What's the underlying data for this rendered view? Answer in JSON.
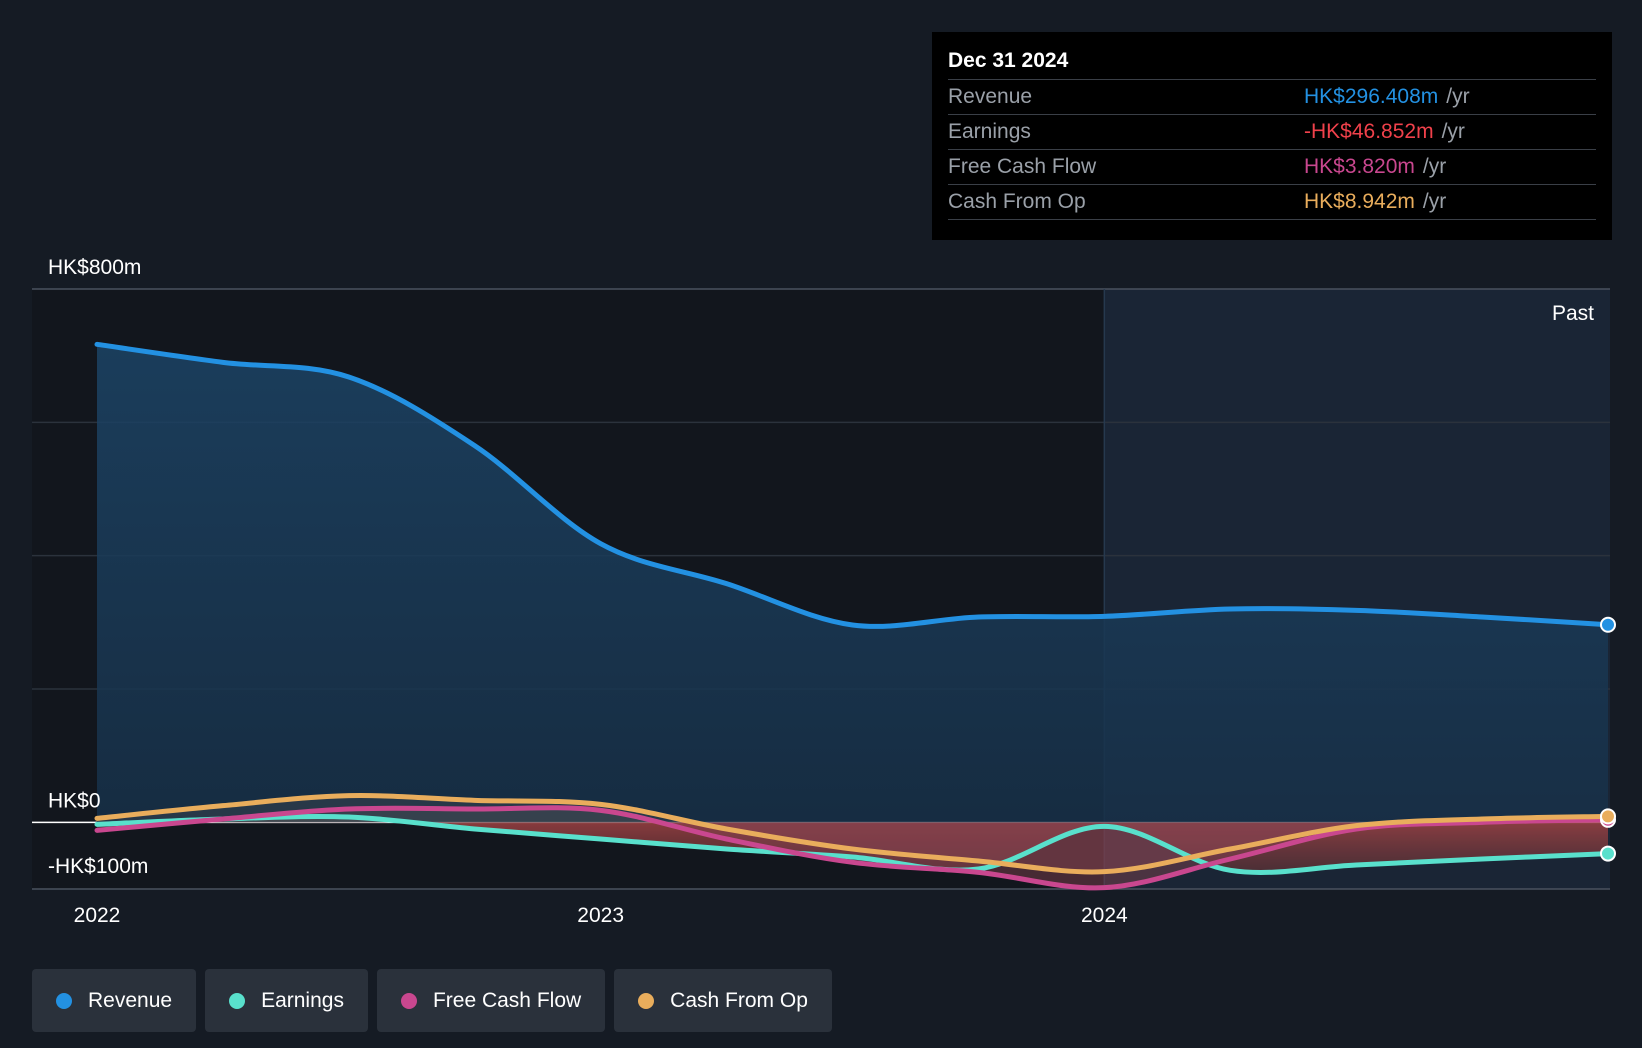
{
  "chart_data": {
    "type": "line",
    "x_unit": "year",
    "y_unit": "HK$m",
    "ylim": [
      -100,
      800
    ],
    "yticks": [
      {
        "value": 800,
        "label": "HK$800m"
      },
      {
        "value": 0,
        "label": "HK$0"
      },
      {
        "value": -100,
        "label": "-HK$100m"
      }
    ],
    "xticks": [
      {
        "value": 2022.0,
        "label": "2022"
      },
      {
        "value": 2023.0,
        "label": "2023"
      },
      {
        "value": 2024.0,
        "label": "2024"
      }
    ],
    "xlim": [
      2021.87,
      2025.0
    ],
    "past_label": "Past",
    "past_start": 2024.0,
    "grid": true,
    "legend_position": "bottom-left",
    "series": [
      {
        "name": "Revenue",
        "color": "#2391e2",
        "x": [
          2022.0,
          2022.25,
          2022.5,
          2022.75,
          2023.0,
          2023.25,
          2023.5,
          2023.75,
          2024.0,
          2024.25,
          2024.5,
          2024.75,
          2025.0
        ],
        "y": [
          717,
          690,
          668,
          565,
          418,
          358,
          296,
          308,
          309,
          320,
          318,
          308,
          296.408
        ]
      },
      {
        "name": "Earnings",
        "color": "#59e0cc",
        "x": [
          2022.0,
          2022.25,
          2022.5,
          2022.75,
          2023.0,
          2023.25,
          2023.5,
          2023.75,
          2024.0,
          2024.25,
          2024.5,
          2024.75,
          2025.0
        ],
        "y": [
          -3,
          5,
          8,
          -10,
          -25,
          -40,
          -52,
          -70,
          -6,
          -72,
          -64,
          -55,
          -46.852
        ]
      },
      {
        "name": "Free Cash Flow",
        "color": "#c9478f",
        "x": [
          2022.0,
          2022.25,
          2022.5,
          2022.75,
          2023.0,
          2023.25,
          2023.5,
          2023.75,
          2024.0,
          2024.25,
          2024.5,
          2024.75,
          2025.0
        ],
        "y": [
          -12,
          5,
          20,
          20,
          18,
          -25,
          -60,
          -75,
          -98,
          -55,
          -10,
          0,
          3.82
        ]
      },
      {
        "name": "Cash From Op",
        "color": "#e9ad5c",
        "x": [
          2022.0,
          2022.25,
          2022.5,
          2022.75,
          2023.0,
          2023.25,
          2023.5,
          2023.75,
          2024.0,
          2024.25,
          2024.5,
          2024.75,
          2025.0
        ],
        "y": [
          6,
          25,
          40,
          33,
          27,
          -10,
          -40,
          -58,
          -74,
          -40,
          -5,
          5,
          8.942
        ]
      }
    ]
  },
  "tooltip": {
    "date": "Dec 31 2024",
    "rows": [
      {
        "label": "Revenue",
        "value": "HK$296.408m",
        "unit": "/yr",
        "color": "#2391e2"
      },
      {
        "label": "Earnings",
        "value": "-HK$46.852m",
        "unit": "/yr",
        "color": "#f0414b"
      },
      {
        "label": "Free Cash Flow",
        "value": "HK$3.820m",
        "unit": "/yr",
        "color": "#c9478f"
      },
      {
        "label": "Cash From Op",
        "value": "HK$8.942m",
        "unit": "/yr",
        "color": "#e9ad5c"
      }
    ]
  },
  "legend": [
    {
      "label": "Revenue",
      "color": "#2391e2"
    },
    {
      "label": "Earnings",
      "color": "#59e0cc"
    },
    {
      "label": "Free Cash Flow",
      "color": "#c9478f"
    },
    {
      "label": "Cash From Op",
      "color": "#e9ad5c"
    }
  ]
}
